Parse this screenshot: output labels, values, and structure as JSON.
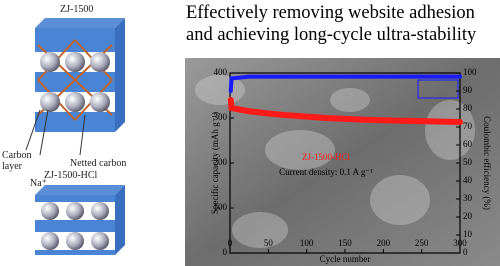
{
  "header": {
    "title": "Effectively removing website adhesion and achieving long-cycle ultra-stability"
  },
  "schematic": {
    "top_label": "ZJ-1500",
    "carbon_layer": "Carbon layer",
    "sodium": "Na⁺",
    "netted_carbon": "Netted carbon",
    "bottom_label": "ZJ-1500-HCl"
  },
  "chart_data": {
    "type": "line",
    "x": [
      1,
      2,
      25,
      50,
      75,
      100,
      125,
      150,
      175,
      200,
      225,
      250,
      275,
      300
    ],
    "series": [
      {
        "name": "Specific capacity",
        "color": "#ff1a1a",
        "values": [
          340,
          322,
          315,
          310,
          306,
          303,
          300,
          298,
          296,
          295,
          294,
          293,
          292,
          291
        ]
      },
      {
        "name": "Coulombic efficiency",
        "color": "#1a1aff",
        "axis": "y2",
        "values": [
          90,
          97,
          98,
          98,
          98,
          98,
          98,
          98,
          98,
          98,
          98,
          98,
          98,
          98
        ]
      }
    ],
    "xlim": [
      0,
      300
    ],
    "xticks": [
      0,
      50,
      100,
      150,
      200,
      250,
      300
    ],
    "ylim": [
      0,
      400
    ],
    "yticks": [
      0,
      100,
      200,
      300,
      400
    ],
    "y2lim": [
      0,
      100
    ],
    "y2ticks": [
      0,
      10,
      20,
      30,
      40,
      50,
      60,
      70,
      80,
      90,
      100
    ],
    "xlabel": "Cycle number",
    "ylabel": "Specific capacity (mAh g⁻¹)",
    "y2label": "Coulombic efficiency (%)",
    "annotations": [
      "ZJ-1500-HCl",
      "Current density: 0.1 A g⁻¹"
    ]
  }
}
